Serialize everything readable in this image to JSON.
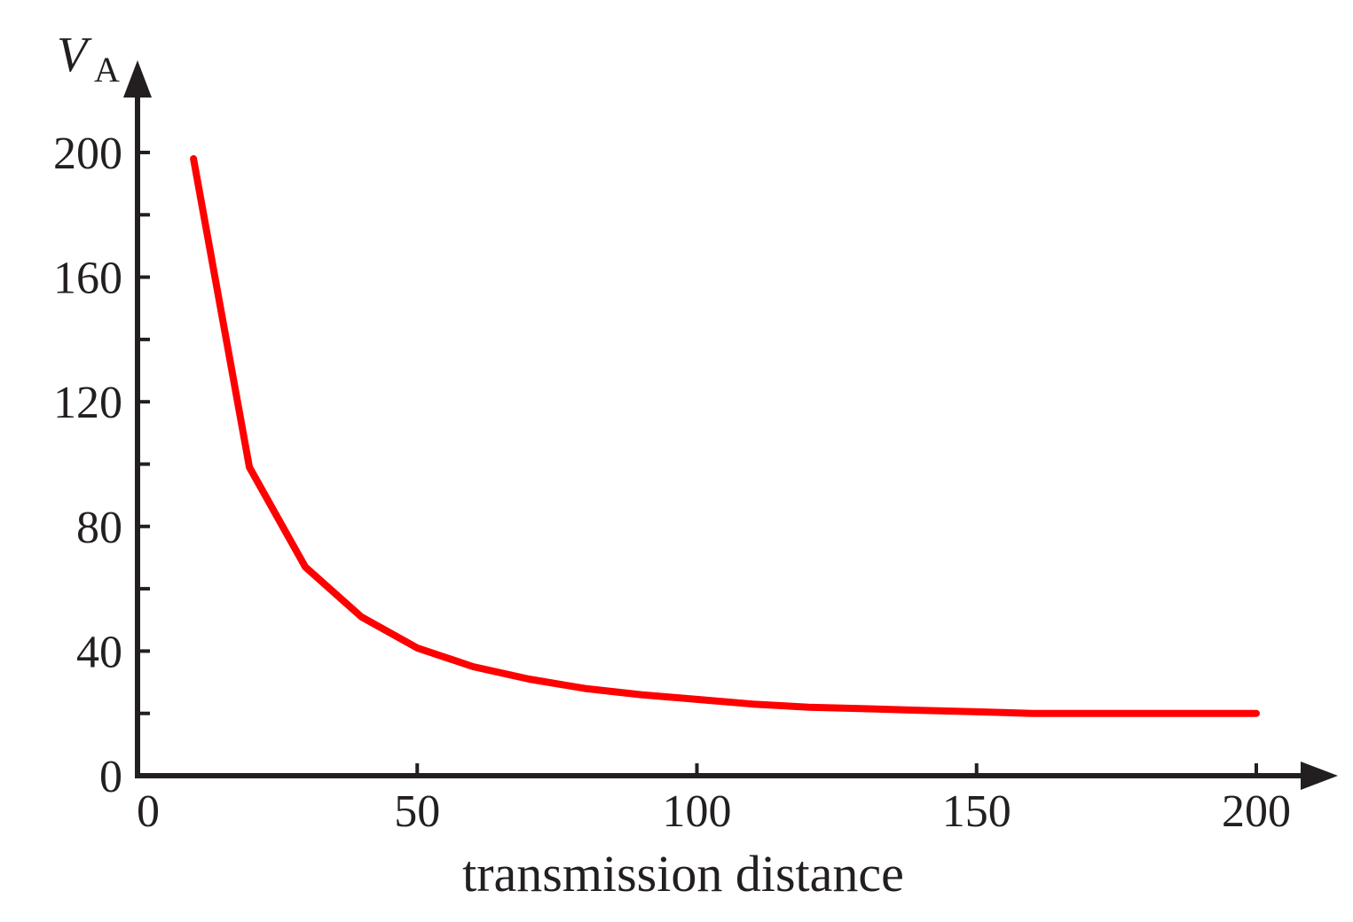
{
  "chart_data": {
    "type": "line",
    "title": "",
    "xlabel": "transmission distance",
    "ylabel": {
      "symbol": "V",
      "subscript": "A"
    },
    "xlim": [
      0,
      200
    ],
    "ylim": [
      0,
      200
    ],
    "x_ticks": [
      0,
      50,
      100,
      150,
      200
    ],
    "y_ticks": [
      0,
      40,
      80,
      120,
      160,
      200
    ],
    "y_minor_ticks": [
      20,
      60,
      100,
      140,
      180
    ],
    "grid": false,
    "legend": "none",
    "series": [
      {
        "color": "#ff0000",
        "x": [
          10,
          20,
          30,
          40,
          50,
          60,
          70,
          80,
          90,
          100,
          110,
          120,
          130,
          140,
          150,
          160,
          170,
          180,
          190,
          200
        ],
        "y": [
          198,
          99,
          67,
          51,
          41,
          35,
          31,
          28,
          26,
          24.5,
          23,
          22,
          21.5,
          21,
          20.5,
          20,
          20,
          20,
          20,
          20
        ]
      }
    ]
  }
}
